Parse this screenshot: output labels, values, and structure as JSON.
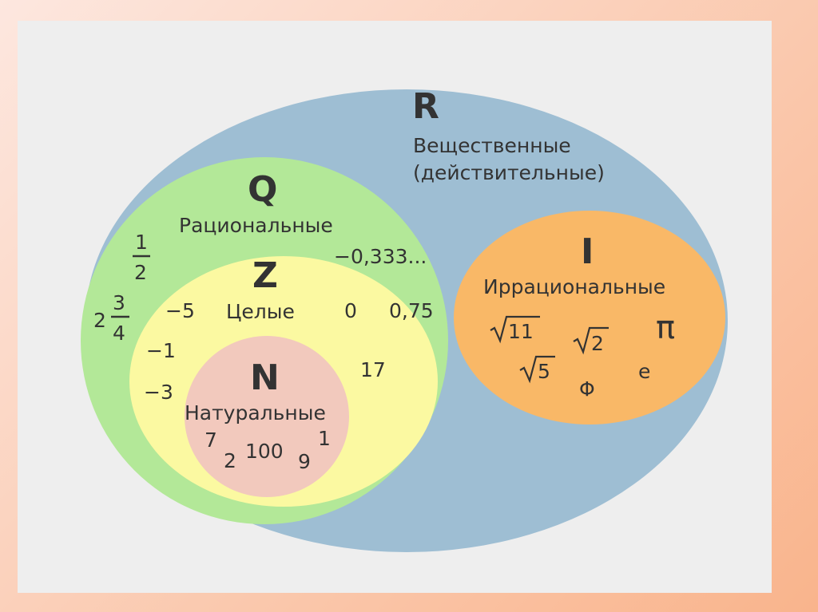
{
  "colors": {
    "background": "#eeeeee",
    "reals": "#9ebed3",
    "rationals": "#b3e898",
    "integers": "#fbf9a1",
    "naturals": "#f2c9bd",
    "irrationals": "#f9b867",
    "text": "#333333"
  },
  "sets": {
    "reals": {
      "letter": "R",
      "name_line1": "Вещественные",
      "name_line2": "(действительные)"
    },
    "rationals": {
      "letter": "Q",
      "name": "Рациональные"
    },
    "integers": {
      "letter": "Z",
      "name": "Целые"
    },
    "naturals": {
      "letter": "N",
      "name": "Натуральные"
    },
    "irrationals": {
      "letter": "I",
      "name": "Иррациональные"
    }
  },
  "examples": {
    "rationals": {
      "frac_half_num": "1",
      "frac_half_den": "2",
      "mixed_whole": "2",
      "mixed_num": "3",
      "mixed_den": "4",
      "repeating": "−0,333...",
      "decimal": "0,75"
    },
    "integers": {
      "neg5": "−5",
      "neg1": "−1",
      "neg3": "−3",
      "zero": "0",
      "seventeen": "17"
    },
    "naturals": {
      "n7": "7",
      "n2": "2",
      "n100": "100",
      "n9": "9",
      "n1": "1"
    },
    "irrationals": {
      "sqrt11": "11",
      "sqrt2": "2",
      "sqrt5": "5",
      "pi": "π",
      "phi": "Φ",
      "e": "e"
    }
  }
}
